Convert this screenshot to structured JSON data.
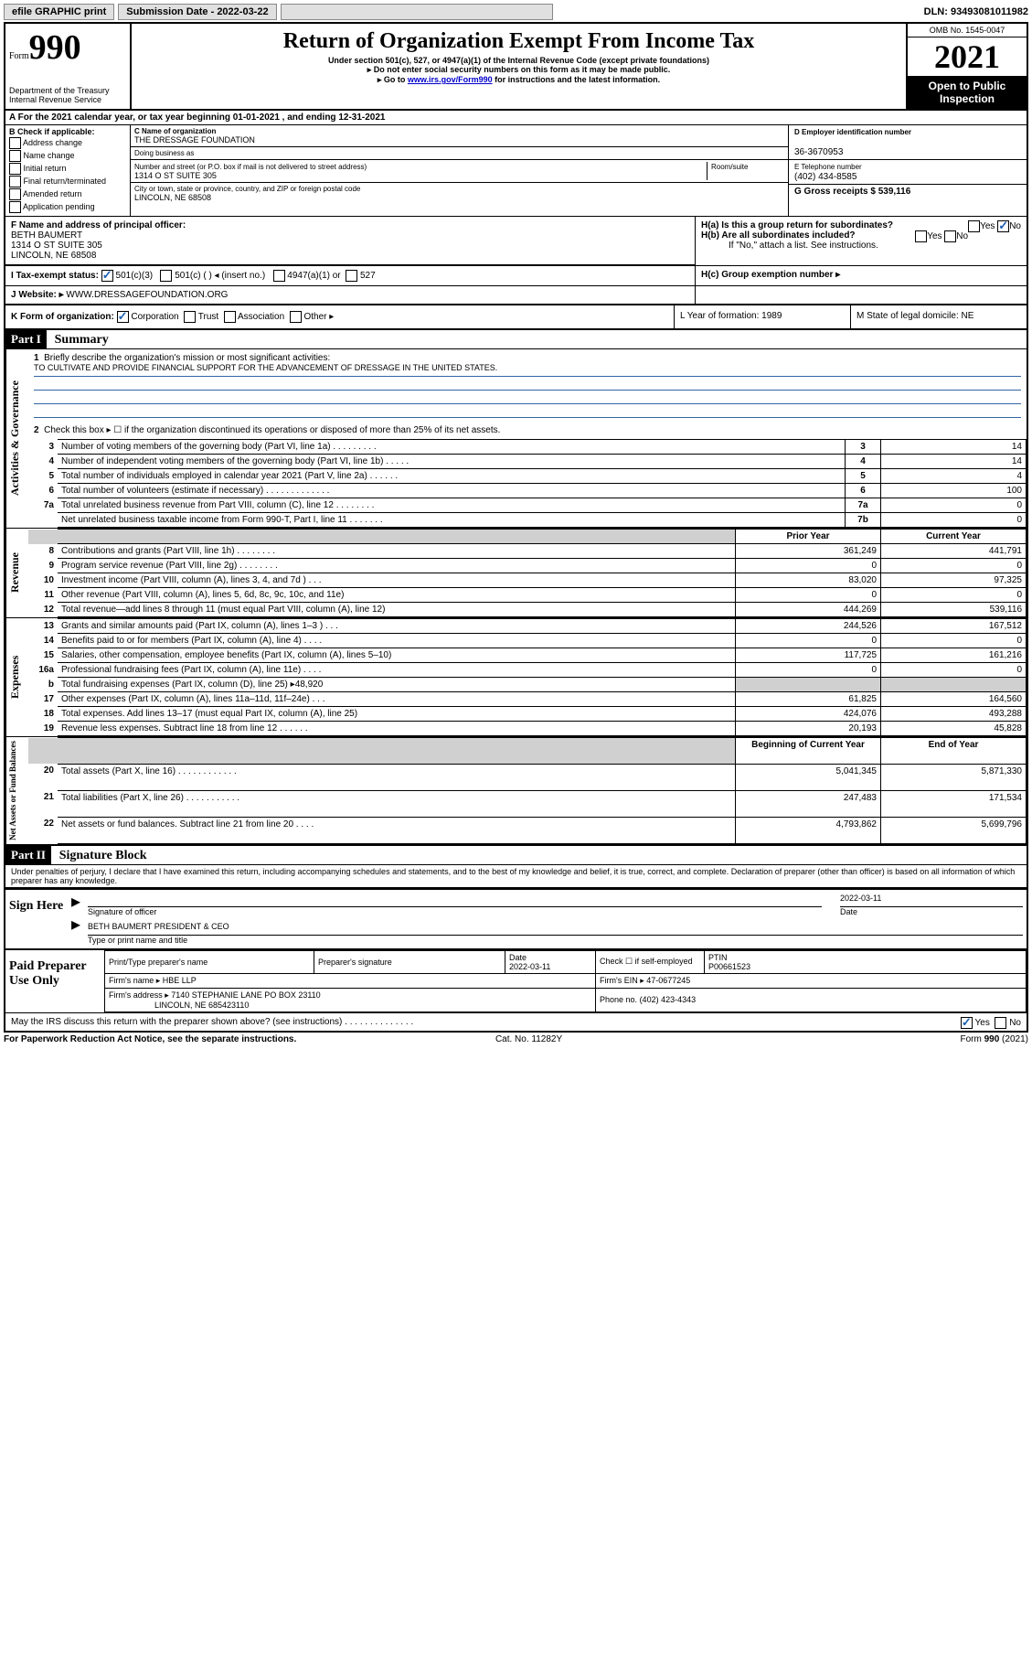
{
  "topbar": {
    "efile_label": "efile GRAPHIC print",
    "sub_date_label": "Submission Date - 2022-03-22",
    "dln": "DLN: 93493081011982"
  },
  "header": {
    "form_label": "Form",
    "form_num": "990",
    "dept": "Department of the Treasury Internal Revenue Service",
    "title": "Return of Organization Exempt From Income Tax",
    "sub1": "Under section 501(c), 527, or 4947(a)(1) of the Internal Revenue Code (except private foundations)",
    "sub2": "▸ Do not enter social security numbers on this form as it may be made public.",
    "sub3": "▸ Go to www.irs.gov/Form990 for instructions and the latest information.",
    "omb": "OMB No. 1545-0047",
    "year": "2021",
    "open": "Open to Public Inspection"
  },
  "row_a": "A For the 2021 calendar year, or tax year beginning 01-01-2021    , and ending 12-31-2021",
  "col_b": {
    "header": "B Check if applicable:",
    "opts": [
      "Address change",
      "Name change",
      "Initial return",
      "Final return/terminated",
      "Amended return",
      "Application pending"
    ]
  },
  "org": {
    "c_label": "C Name of organization",
    "name": "THE DRESSAGE FOUNDATION",
    "dba_label": "Doing business as",
    "dba": "",
    "addr_label": "Number and street (or P.O. box if mail is not delivered to street address)",
    "room_label": "Room/suite",
    "addr": "1314 O ST SUITE 305",
    "city_label": "City or town, state or province, country, and ZIP or foreign postal code",
    "city": "LINCOLN, NE  68508"
  },
  "right": {
    "d_label": "D Employer identification number",
    "ein": "36-3670953",
    "e_label": "E Telephone number",
    "phone": "(402) 434-8585",
    "g_label": "G Gross receipts $ 539,116"
  },
  "f": {
    "label": "F  Name and address of principal officer:",
    "name": "BETH BAUMERT",
    "addr1": "1314 O ST SUITE 305",
    "addr2": "LINCOLN, NE  68508"
  },
  "h": {
    "ha": "H(a)  Is this a group return for subordinates?",
    "hb": "H(b)  Are all subordinates included?",
    "hb_note": "If \"No,\" attach a list. See instructions.",
    "hc": "H(c)  Group exemption number ▸",
    "yes": "Yes",
    "no": "No"
  },
  "i": {
    "label": "I   Tax-exempt status:",
    "o1": "501(c)(3)",
    "o2": "501(c) (   ) ◂ (insert no.)",
    "o3": "4947(a)(1) or",
    "o4": "527"
  },
  "j": {
    "label": "J   Website: ▸",
    "val": "WWW.DRESSAGEFOUNDATION.ORG"
  },
  "k": {
    "label": "K Form of organization:",
    "opts": [
      "Corporation",
      "Trust",
      "Association",
      "Other ▸"
    ],
    "l_label": "L Year of formation: 1989",
    "m_label": "M State of legal domicile: NE"
  },
  "part1": {
    "header": "Part I",
    "title": "Summary",
    "q1": "Briefly describe the organization's mission or most significant activities:",
    "mission": "TO CULTIVATE AND PROVIDE FINANCIAL SUPPORT FOR THE ADVANCEMENT OF DRESSAGE IN THE UNITED STATES.",
    "q2": "Check this box ▸ ☐  if the organization discontinued its operations or disposed of more than 25% of its net assets.",
    "lines_gov": [
      {
        "n": "3",
        "desc": "Number of voting members of the governing body (Part VI, line 1a)   .    .    .    .    .    .    .    .    .",
        "box": "3",
        "v": "14"
      },
      {
        "n": "4",
        "desc": "Number of independent voting members of the governing body (Part VI, line 1b)   .    .    .    .    .",
        "box": "4",
        "v": "14"
      },
      {
        "n": "5",
        "desc": "Total number of individuals employed in calendar year 2021 (Part V, line 2a)   .    .    .    .    .    .",
        "box": "5",
        "v": "4"
      },
      {
        "n": "6",
        "desc": "Total number of volunteers (estimate if necessary)   .    .    .    .    .    .    .    .    .    .    .    .    .",
        "box": "6",
        "v": "100"
      },
      {
        "n": "7a",
        "desc": "Total unrelated business revenue from Part VIII, column (C), line 12   .    .    .    .    .    .    .    .",
        "box": "7a",
        "v": "0"
      },
      {
        "n": "",
        "desc": "Net unrelated business taxable income from Form 990-T, Part I, line 11   .    .    .    .    .    .    .",
        "box": "7b",
        "v": "0"
      }
    ],
    "col_hdr_prior": "Prior Year",
    "col_hdr_curr": "Current Year",
    "revenue": [
      {
        "n": "8",
        "desc": "Contributions and grants (Part VIII, line 1h)   .    .    .    .    .    .    .    .",
        "p": "361,249",
        "c": "441,791"
      },
      {
        "n": "9",
        "desc": "Program service revenue (Part VIII, line 2g)   .    .    .    .    .    .    .    .",
        "p": "0",
        "c": "0"
      },
      {
        "n": "10",
        "desc": "Investment income (Part VIII, column (A), lines 3, 4, and 7d )   .    .    .",
        "p": "83,020",
        "c": "97,325"
      },
      {
        "n": "11",
        "desc": "Other revenue (Part VIII, column (A), lines 5, 6d, 8c, 9c, 10c, and 11e)",
        "p": "0",
        "c": "0"
      },
      {
        "n": "12",
        "desc": "Total revenue—add lines 8 through 11 (must equal Part VIII, column (A), line 12)",
        "p": "444,269",
        "c": "539,116"
      }
    ],
    "expenses": [
      {
        "n": "13",
        "desc": "Grants and similar amounts paid (Part IX, column (A), lines 1–3 )   .    .    .",
        "p": "244,526",
        "c": "167,512"
      },
      {
        "n": "14",
        "desc": "Benefits paid to or for members (Part IX, column (A), line 4)   .    .    .    .",
        "p": "0",
        "c": "0"
      },
      {
        "n": "15",
        "desc": "Salaries, other compensation, employee benefits (Part IX, column (A), lines 5–10)",
        "p": "117,725",
        "c": "161,216"
      },
      {
        "n": "16a",
        "desc": "Professional fundraising fees (Part IX, column (A), line 11e)   .    .    .    .",
        "p": "0",
        "c": "0"
      },
      {
        "n": "b",
        "desc": "Total fundraising expenses (Part IX, column (D), line 25) ▸48,920",
        "p": "",
        "c": "",
        "shaded": true
      },
      {
        "n": "17",
        "desc": "Other expenses (Part IX, column (A), lines 11a–11d, 11f–24e)   .    .    .",
        "p": "61,825",
        "c": "164,560"
      },
      {
        "n": "18",
        "desc": "Total expenses. Add lines 13–17 (must equal Part IX, column (A), line 25)",
        "p": "424,076",
        "c": "493,288"
      },
      {
        "n": "19",
        "desc": "Revenue less expenses. Subtract line 18 from line 12   .    .    .    .    .    .",
        "p": "20,193",
        "c": "45,828"
      }
    ],
    "net_hdr_b": "Beginning of Current Year",
    "net_hdr_e": "End of Year",
    "net": [
      {
        "n": "20",
        "desc": "Total assets (Part X, line 16)   .    .    .    .    .    .    .    .    .    .    .    .",
        "p": "5,041,345",
        "c": "5,871,330"
      },
      {
        "n": "21",
        "desc": "Total liabilities (Part X, line 26)   .    .    .    .    .    .    .    .    .    .    .",
        "p": "247,483",
        "c": "171,534"
      },
      {
        "n": "22",
        "desc": "Net assets or fund balances. Subtract line 21 from line 20   .    .    .    .",
        "p": "4,793,862",
        "c": "5,699,796"
      }
    ],
    "vert_gov": "Activities & Governance",
    "vert_rev": "Revenue",
    "vert_exp": "Expenses",
    "vert_net": "Net Assets or Fund Balances"
  },
  "part2": {
    "header": "Part II",
    "title": "Signature Block",
    "decl": "Under penalties of perjury, I declare that I have examined this return, including accompanying schedules and statements, and to the best of my knowledge and belief, it is true, correct, and complete. Declaration of preparer (other than officer) is based on all information of which preparer has any knowledge.",
    "sign_here": "Sign Here",
    "sig_officer": "Signature of officer",
    "sig_date": "2022-03-11",
    "date_lbl": "Date",
    "officer": "BETH BAUMERT PRESIDENT & CEO",
    "type_name": "Type or print name and title",
    "paid": "Paid Preparer Use Only",
    "prep_name_lbl": "Print/Type preparer's name",
    "prep_sig_lbl": "Preparer's signature",
    "prep_date_lbl": "Date",
    "prep_date": "2022-03-11",
    "check_if": "Check ☐ if self-employed",
    "ptin_lbl": "PTIN",
    "ptin": "P00661523",
    "firm_name_lbl": "Firm's name    ▸",
    "firm_name": "HBE LLP",
    "firm_ein_lbl": "Firm's EIN ▸",
    "firm_ein": "47-0677245",
    "firm_addr_lbl": "Firm's address ▸",
    "firm_addr": "7140 STEPHANIE LANE PO BOX 23110",
    "firm_city": "LINCOLN, NE  685423110",
    "phone_lbl": "Phone no.",
    "phone": "(402) 423-4343",
    "discuss": "May the IRS discuss this return with the preparer shown above? (see instructions)   .    .    .    .    .    .    .    .    .    .    .    .    .    .",
    "yes": "Yes",
    "no": "No"
  },
  "footer": {
    "pra": "For Paperwork Reduction Act Notice, see the separate instructions.",
    "cat": "Cat. No. 11282Y",
    "form": "Form 990 (2021)"
  }
}
